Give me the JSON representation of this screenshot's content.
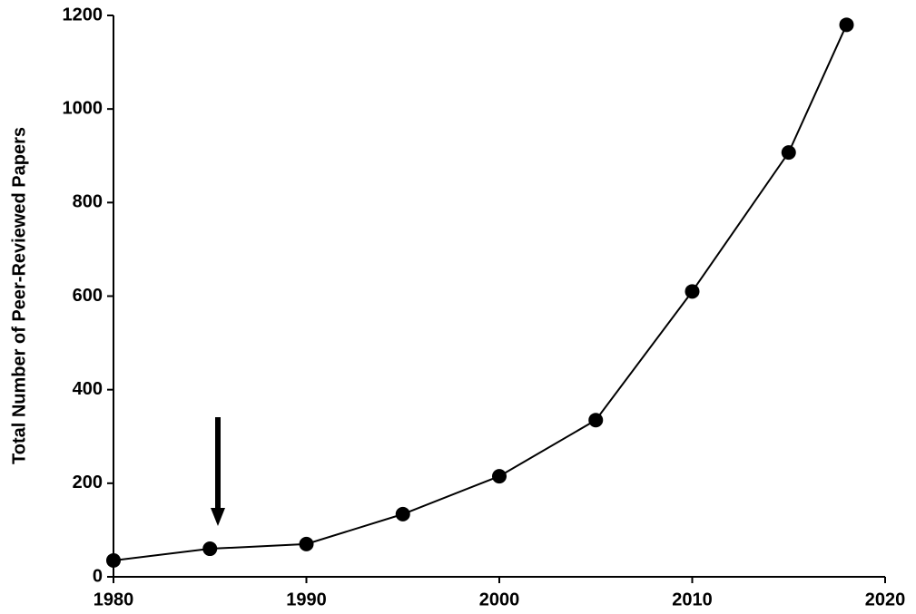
{
  "chart_data": {
    "type": "line",
    "y_label": "Total Number of Peer-Reviewed Papers",
    "x": [
      1980,
      1985,
      1990,
      1995,
      2000,
      2005,
      2010,
      2015,
      2018
    ],
    "series": [
      {
        "color": "#000000",
        "values": [
          35,
          60,
          70,
          134,
          215,
          335,
          610,
          907,
          1180
        ]
      }
    ],
    "xlim": [
      1980,
      2020
    ],
    "xticks": [
      1980,
      1990,
      2000,
      2010,
      2020
    ],
    "ylim": [
      0,
      1200
    ],
    "yticks": [
      0,
      200,
      400,
      600,
      800,
      1000,
      1200
    ],
    "grid": false
  }
}
